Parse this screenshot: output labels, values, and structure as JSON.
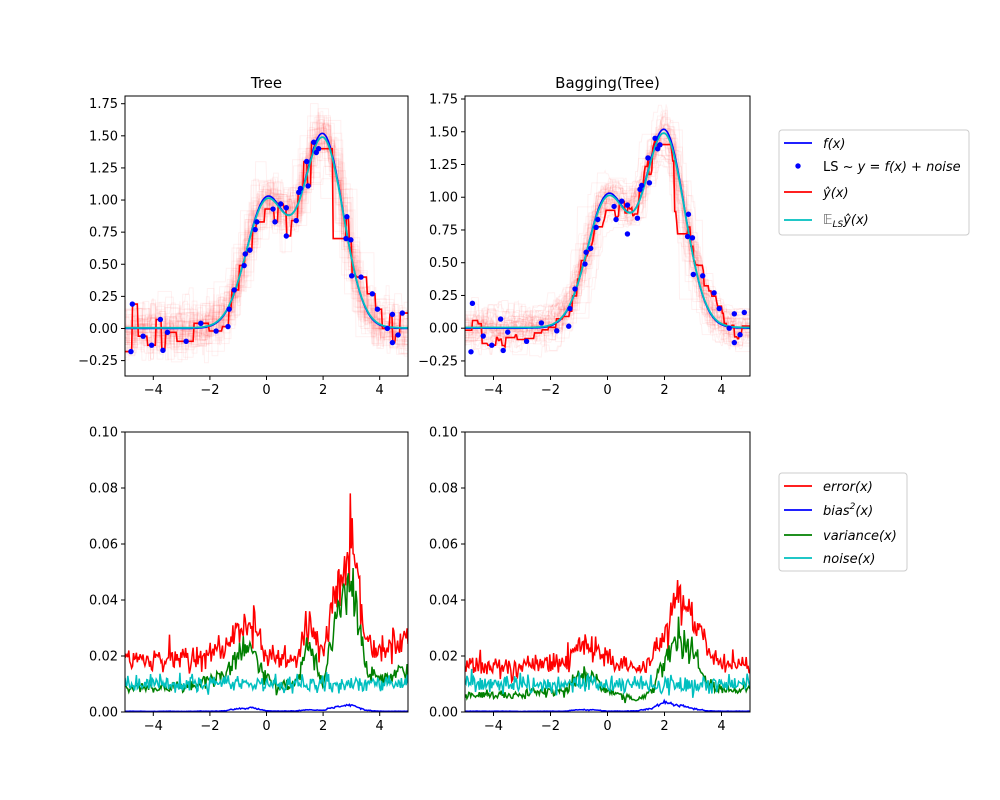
{
  "chart_data": [
    {
      "type": "line",
      "title": "Tree",
      "xlim": [
        -5,
        5
      ],
      "ylim": [
        -0.37,
        1.81
      ],
      "xticks": [
        -4,
        -2,
        0,
        2,
        4
      ],
      "yticks": [
        -0.25,
        0.0,
        0.25,
        0.5,
        0.75,
        1.0,
        1.25,
        1.5,
        1.75
      ],
      "estimator": "tree",
      "grid": false
    },
    {
      "type": "line",
      "title": "Bagging(Tree)",
      "xlim": [
        -5,
        5
      ],
      "ylim": [
        -0.365,
        1.773
      ],
      "xticks": [
        -4,
        -2,
        0,
        2,
        4
      ],
      "yticks": [
        -0.25,
        0.0,
        0.25,
        0.5,
        0.75,
        1.0,
        1.25,
        1.5,
        1.75
      ],
      "estimator": "bagging",
      "grid": false
    },
    {
      "type": "line",
      "title": "",
      "xlim": [
        -5,
        5
      ],
      "ylim": [
        0,
        0.1
      ],
      "xticks": [
        -4,
        -2,
        0,
        2,
        4
      ],
      "yticks": [
        0.0,
        0.02,
        0.04,
        0.06,
        0.08,
        0.1
      ],
      "x": [
        -5,
        -4.5,
        -4,
        -3.5,
        -3,
        -2.5,
        -2,
        -1.5,
        -1,
        -0.5,
        0,
        0.5,
        1,
        1.5,
        2,
        2.5,
        3,
        3.5,
        4,
        4.5,
        5
      ],
      "series": [
        {
          "name": "error(x)",
          "color": "#ff0000",
          "values": [
            0.019,
            0.019,
            0.018,
            0.019,
            0.019,
            0.02,
            0.021,
            0.022,
            0.03,
            0.032,
            0.022,
            0.019,
            0.02,
            0.033,
            0.022,
            0.045,
            0.058,
            0.026,
            0.022,
            0.024,
            0.026
          ]
        },
        {
          "name": "bias^2(x)",
          "color": "#0000ff",
          "values": [
            0.0003,
            0.0003,
            0.0002,
            0.0003,
            0.0002,
            0.0003,
            0.0003,
            0.0004,
            0.0012,
            0.0015,
            0.0004,
            0.0003,
            0.0004,
            0.0008,
            0.0006,
            0.002,
            0.0025,
            0.0006,
            0.0003,
            0.0003,
            0.0003
          ]
        },
        {
          "name": "variance(x)",
          "color": "#008000",
          "values": [
            0.009,
            0.009,
            0.008,
            0.009,
            0.009,
            0.01,
            0.011,
            0.013,
            0.021,
            0.022,
            0.012,
            0.009,
            0.01,
            0.024,
            0.011,
            0.035,
            0.048,
            0.016,
            0.012,
            0.013,
            0.015
          ]
        },
        {
          "name": "noise(x)",
          "color": "#00bfbf",
          "values": [
            0.01,
            0.01,
            0.01,
            0.01,
            0.01,
            0.01,
            0.01,
            0.01,
            0.01,
            0.01,
            0.01,
            0.01,
            0.01,
            0.01,
            0.01,
            0.01,
            0.01,
            0.01,
            0.01,
            0.01,
            0.01
          ]
        }
      ]
    },
    {
      "type": "line",
      "title": "",
      "xlim": [
        -5,
        5
      ],
      "ylim": [
        0,
        0.1
      ],
      "xticks": [
        -4,
        -2,
        0,
        2,
        4
      ],
      "yticks": [
        0.0,
        0.02,
        0.04,
        0.06,
        0.08,
        0.1
      ],
      "x": [
        -5,
        -4.5,
        -4,
        -3.5,
        -3,
        -2.5,
        -2,
        -1.5,
        -1,
        -0.5,
        0,
        0.5,
        1,
        1.5,
        2,
        2.5,
        3,
        3.5,
        4,
        4.5,
        5
      ],
      "series": [
        {
          "name": "error(x)",
          "color": "#ff0000",
          "values": [
            0.016,
            0.016,
            0.016,
            0.016,
            0.016,
            0.017,
            0.017,
            0.018,
            0.023,
            0.022,
            0.019,
            0.017,
            0.015,
            0.017,
            0.03,
            0.04,
            0.035,
            0.022,
            0.018,
            0.017,
            0.017
          ]
        },
        {
          "name": "bias^2(x)",
          "color": "#0000ff",
          "values": [
            0.0003,
            0.0003,
            0.0003,
            0.0003,
            0.0002,
            0.0003,
            0.0003,
            0.0003,
            0.0008,
            0.0008,
            0.0003,
            0.0003,
            0.0004,
            0.0012,
            0.0035,
            0.0025,
            0.0012,
            0.0004,
            0.0003,
            0.0003,
            0.0003
          ]
        },
        {
          "name": "variance(x)",
          "color": "#008000",
          "values": [
            0.006,
            0.006,
            0.006,
            0.006,
            0.006,
            0.007,
            0.007,
            0.008,
            0.013,
            0.012,
            0.008,
            0.006,
            0.004,
            0.007,
            0.018,
            0.027,
            0.022,
            0.01,
            0.008,
            0.008,
            0.008
          ]
        },
        {
          "name": "noise(x)",
          "color": "#00bfbf",
          "values": [
            0.01,
            0.01,
            0.01,
            0.01,
            0.01,
            0.01,
            0.01,
            0.01,
            0.01,
            0.01,
            0.01,
            0.01,
            0.01,
            0.01,
            0.01,
            0.01,
            0.01,
            0.01,
            0.01,
            0.01,
            0.01
          ]
        }
      ]
    }
  ],
  "learning_set": {
    "x": [
      -4.79,
      -4.74,
      -4.36,
      -4.06,
      -3.75,
      -3.66,
      -3.5,
      -2.84,
      -2.32,
      -1.78,
      -1.36,
      -1.32,
      -1.14,
      -0.79,
      -0.75,
      -0.59,
      -0.4,
      -0.34,
      0.23,
      0.3,
      0.5,
      0.7,
      0.7,
      1.05,
      1.14,
      1.2,
      1.42,
      1.47,
      1.67,
      1.76,
      1.84,
      2.81,
      2.84,
      2.98,
      3.01,
      3.34,
      3.74,
      3.92,
      4.27,
      4.45,
      4.45,
      4.65,
      4.8
    ],
    "y": [
      -0.18,
      0.19,
      -0.06,
      -0.13,
      0.07,
      -0.17,
      -0.03,
      -0.1,
      0.04,
      -0.02,
      0.015,
      0.15,
      0.3,
      0.49,
      0.58,
      0.61,
      0.77,
      0.83,
      0.93,
      0.83,
      0.97,
      0.94,
      0.72,
      0.84,
      1.06,
      1.09,
      1.3,
      1.11,
      1.45,
      1.37,
      1.4,
      0.7,
      0.87,
      0.69,
      0.41,
      0.4,
      0.27,
      0.15,
      0.0,
      0.11,
      -0.11,
      -0.05,
      0.12
    ]
  },
  "colors": {
    "f": "#0000ff",
    "points": "#0000ff",
    "estimate": "#ff0000",
    "mean_estimate": "#00bfbf"
  },
  "legend_top": {
    "placement": "right",
    "entries": [
      {
        "label": "f(x)"
      },
      {
        "label_plain": "LS ~ ",
        "label_math": "y = f(x) + noise"
      },
      {
        "label": "ŷ(x)"
      },
      {
        "label_prefix": "𝔼",
        "label_sub": "LS",
        "label": "ŷ(x)"
      }
    ]
  },
  "legend_bottom": {
    "placement": "right",
    "entries": [
      {
        "label": "error(x)"
      },
      {
        "label": "bias",
        "sup": "2",
        "label_rest": "(x)"
      },
      {
        "label": "variance(x)"
      },
      {
        "label": "noise(x)"
      }
    ]
  }
}
